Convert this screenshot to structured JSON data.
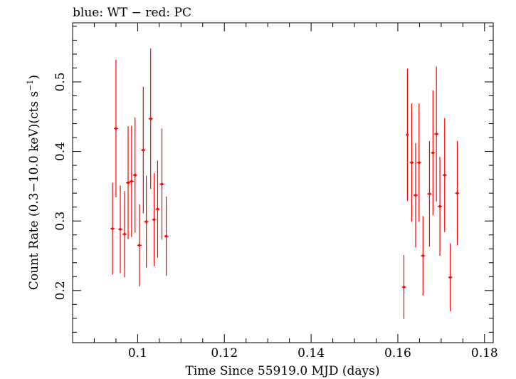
{
  "chart_data": {
    "type": "scatter",
    "title": "blue: WT − red: PC",
    "xlabel": "Time Since 55919.0 MJD (days)",
    "ylabel_main": "Count Rate (0.3−10.0 keV)(cts s",
    "ylabel_sup": "−1",
    "ylabel_end": ")",
    "xlim": [
      0.085,
      0.182
    ],
    "ylim": [
      0.125,
      0.585
    ],
    "x_ticks": [
      0.1,
      0.12,
      0.14,
      0.16,
      0.18
    ],
    "x_tick_labels": [
      "0.1",
      "0.12",
      "0.14",
      "0.16",
      "0.18"
    ],
    "y_ticks": [
      0.2,
      0.3,
      0.4,
      0.5
    ],
    "y_tick_labels": [
      "0.2",
      "0.3",
      "0.4",
      "0.5"
    ],
    "grid": false,
    "series": [
      {
        "name": "PC",
        "color": "#ff0000",
        "points": [
          {
            "x": 0.0942,
            "y": 0.289,
            "err": 0.066,
            "xerr": 0.0005
          },
          {
            "x": 0.095,
            "y": 0.433,
            "err": 0.099,
            "xerr": 0.0005
          },
          {
            "x": 0.096,
            "y": 0.288,
            "err": 0.063,
            "xerr": 0.0005
          },
          {
            "x": 0.097,
            "y": 0.281,
            "err": 0.062,
            "xerr": 0.0005
          },
          {
            "x": 0.0978,
            "y": 0.355,
            "err": 0.081,
            "xerr": 0.0005
          },
          {
            "x": 0.0986,
            "y": 0.357,
            "err": 0.08,
            "xerr": 0.0005
          },
          {
            "x": 0.0994,
            "y": 0.366,
            "err": 0.083,
            "xerr": 0.0005
          },
          {
            "x": 0.1004,
            "y": 0.265,
            "err": 0.059,
            "xerr": 0.0005
          },
          {
            "x": 0.1013,
            "y": 0.402,
            "err": 0.091,
            "xerr": 0.0005
          },
          {
            "x": 0.102,
            "y": 0.299,
            "err": 0.066,
            "xerr": 0.0005
          },
          {
            "x": 0.103,
            "y": 0.447,
            "err": 0.101,
            "xerr": 0.0005
          },
          {
            "x": 0.1038,
            "y": 0.302,
            "err": 0.067,
            "xerr": 0.0005
          },
          {
            "x": 0.1046,
            "y": 0.317,
            "err": 0.07,
            "xerr": 0.0005
          },
          {
            "x": 0.1056,
            "y": 0.353,
            "err": 0.08,
            "xerr": 0.0005
          },
          {
            "x": 0.1066,
            "y": 0.278,
            "err": 0.057,
            "xerr": 0.0005
          },
          {
            "x": 0.1614,
            "y": 0.205,
            "err": 0.046,
            "xerr": 0.0005
          },
          {
            "x": 0.1622,
            "y": 0.424,
            "err": 0.095,
            "xerr": 0.0003
          },
          {
            "x": 0.1632,
            "y": 0.384,
            "err": 0.085,
            "xerr": 0.0005
          },
          {
            "x": 0.1641,
            "y": 0.337,
            "err": 0.075,
            "xerr": 0.0005
          },
          {
            "x": 0.1649,
            "y": 0.384,
            "err": 0.085,
            "xerr": 0.0005
          },
          {
            "x": 0.1658,
            "y": 0.25,
            "err": 0.057,
            "xerr": 0.0005
          },
          {
            "x": 0.1673,
            "y": 0.339,
            "err": 0.076,
            "xerr": 0.0005
          },
          {
            "x": 0.1681,
            "y": 0.398,
            "err": 0.09,
            "xerr": 0.0005
          },
          {
            "x": 0.1689,
            "y": 0.425,
            "err": 0.097,
            "xerr": 0.0005
          },
          {
            "x": 0.1697,
            "y": 0.321,
            "err": 0.071,
            "xerr": 0.0005
          },
          {
            "x": 0.1708,
            "y": 0.366,
            "err": 0.082,
            "xerr": 0.0005
          },
          {
            "x": 0.1721,
            "y": 0.219,
            "err": 0.049,
            "xerr": 0.0005
          },
          {
            "x": 0.1737,
            "y": 0.34,
            "err": 0.075,
            "xerr": 0.0005
          }
        ]
      }
    ]
  }
}
